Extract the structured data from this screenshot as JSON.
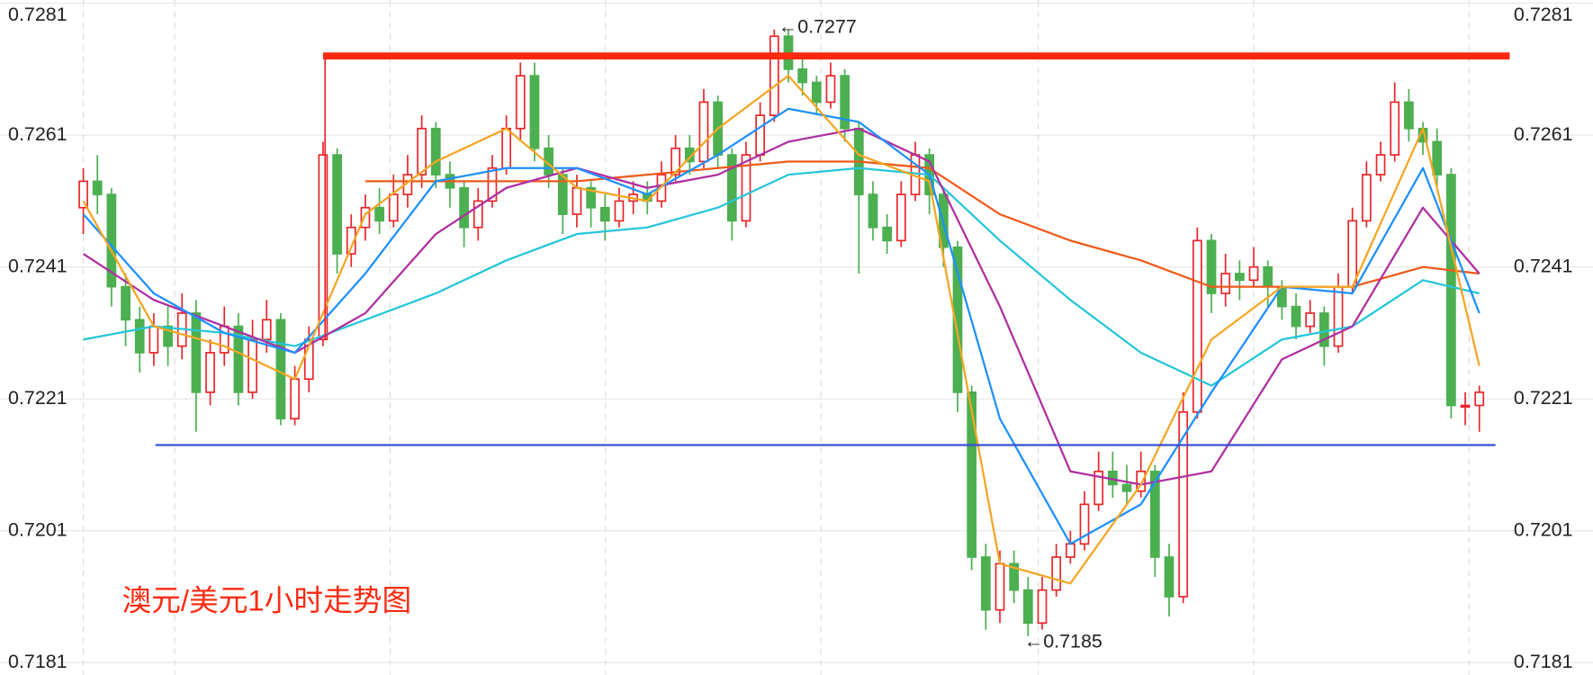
{
  "chart_data": {
    "type": "candlestick",
    "title": "澳元/美元1小时走势图",
    "ylim": [
      0.7181,
      0.7281
    ],
    "yticks": [
      0.7181,
      0.7201,
      0.7221,
      0.7241,
      0.7261,
      0.7281
    ],
    "grid": true,
    "up_color": "#e8262a",
    "down_color": "#4caf50",
    "ohlc": [
      [
        0.725,
        0.7256,
        0.7246,
        0.7254
      ],
      [
        0.7254,
        0.7258,
        0.7249,
        0.7252
      ],
      [
        0.7252,
        0.7253,
        0.7235,
        0.7238
      ],
      [
        0.7238,
        0.724,
        0.7229,
        0.7233
      ],
      [
        0.7233,
        0.7235,
        0.7225,
        0.7228
      ],
      [
        0.7228,
        0.7234,
        0.7226,
        0.7232
      ],
      [
        0.7232,
        0.7235,
        0.7226,
        0.7229
      ],
      [
        0.7229,
        0.7237,
        0.7227,
        0.7234
      ],
      [
        0.7234,
        0.7236,
        0.7216,
        0.7222
      ],
      [
        0.7222,
        0.723,
        0.722,
        0.7228
      ],
      [
        0.7228,
        0.7235,
        0.7226,
        0.7232
      ],
      [
        0.7232,
        0.7234,
        0.722,
        0.7222
      ],
      [
        0.7222,
        0.7233,
        0.7221,
        0.723
      ],
      [
        0.723,
        0.7236,
        0.7228,
        0.7233
      ],
      [
        0.7233,
        0.7234,
        0.7217,
        0.7218
      ],
      [
        0.7218,
        0.7226,
        0.7217,
        0.7224
      ],
      [
        0.7224,
        0.7232,
        0.7222,
        0.723
      ],
      [
        0.723,
        0.726,
        0.7229,
        0.7258
      ],
      [
        0.7258,
        0.7259,
        0.724,
        0.7243
      ],
      [
        0.7243,
        0.7249,
        0.7241,
        0.7247
      ],
      [
        0.7247,
        0.7252,
        0.7245,
        0.725
      ],
      [
        0.725,
        0.7253,
        0.7246,
        0.7248
      ],
      [
        0.7248,
        0.7255,
        0.7247,
        0.7252
      ],
      [
        0.7252,
        0.7258,
        0.725,
        0.7255
      ],
      [
        0.7255,
        0.7264,
        0.7253,
        0.7262
      ],
      [
        0.7262,
        0.7263,
        0.7253,
        0.7255
      ],
      [
        0.7255,
        0.7257,
        0.725,
        0.7253
      ],
      [
        0.7253,
        0.7254,
        0.7244,
        0.7247
      ],
      [
        0.7247,
        0.7253,
        0.7245,
        0.7251
      ],
      [
        0.7251,
        0.7258,
        0.725,
        0.7256
      ],
      [
        0.7256,
        0.7264,
        0.7255,
        0.7262
      ],
      [
        0.7262,
        0.7272,
        0.726,
        0.727
      ],
      [
        0.727,
        0.7272,
        0.7257,
        0.7259
      ],
      [
        0.7259,
        0.7261,
        0.7253,
        0.7255
      ],
      [
        0.7255,
        0.7256,
        0.7246,
        0.7249
      ],
      [
        0.7249,
        0.7255,
        0.7247,
        0.7253
      ],
      [
        0.7253,
        0.7254,
        0.7247,
        0.725
      ],
      [
        0.725,
        0.7252,
        0.7245,
        0.7248
      ],
      [
        0.7248,
        0.7253,
        0.7247,
        0.7251
      ],
      [
        0.7251,
        0.7254,
        0.7249,
        0.7252
      ],
      [
        0.7252,
        0.7254,
        0.7249,
        0.7251
      ],
      [
        0.7251,
        0.7257,
        0.725,
        0.7255
      ],
      [
        0.7255,
        0.7261,
        0.7254,
        0.7259
      ],
      [
        0.7259,
        0.7261,
        0.7255,
        0.7257
      ],
      [
        0.7257,
        0.7268,
        0.7256,
        0.7266
      ],
      [
        0.7266,
        0.7267,
        0.7256,
        0.7258
      ],
      [
        0.7258,
        0.7259,
        0.7245,
        0.7248
      ],
      [
        0.7248,
        0.726,
        0.7247,
        0.7258
      ],
      [
        0.7258,
        0.7266,
        0.7257,
        0.7264
      ],
      [
        0.7264,
        0.7277,
        0.7263,
        0.7276
      ],
      [
        0.7276,
        0.7277,
        0.7269,
        0.7271
      ],
      [
        0.7271,
        0.7273,
        0.7267,
        0.7269
      ],
      [
        0.7269,
        0.727,
        0.7264,
        0.7266
      ],
      [
        0.7266,
        0.7272,
        0.7265,
        0.727
      ],
      [
        0.727,
        0.7271,
        0.726,
        0.7262
      ],
      [
        0.7262,
        0.7263,
        0.724,
        0.7252
      ],
      [
        0.7252,
        0.7254,
        0.7245,
        0.7247
      ],
      [
        0.7247,
        0.7249,
        0.7243,
        0.7245
      ],
      [
        0.7245,
        0.7254,
        0.7244,
        0.7252
      ],
      [
        0.7252,
        0.726,
        0.7251,
        0.7258
      ],
      [
        0.7258,
        0.7259,
        0.7249,
        0.7252
      ],
      [
        0.7252,
        0.7253,
        0.7241,
        0.7244
      ],
      [
        0.7244,
        0.7245,
        0.7219,
        0.7222
      ],
      [
        0.7222,
        0.7223,
        0.7195,
        0.7197
      ],
      [
        0.7197,
        0.7199,
        0.7186,
        0.7189
      ],
      [
        0.7189,
        0.7198,
        0.7187,
        0.7196
      ],
      [
        0.7196,
        0.7198,
        0.719,
        0.7192
      ],
      [
        0.7192,
        0.7194,
        0.7185,
        0.7187
      ],
      [
        0.7187,
        0.7194,
        0.7186,
        0.7192
      ],
      [
        0.7192,
        0.7199,
        0.7191,
        0.7197
      ],
      [
        0.7197,
        0.7201,
        0.7196,
        0.7199
      ],
      [
        0.7199,
        0.7207,
        0.7198,
        0.7205
      ],
      [
        0.7205,
        0.7213,
        0.7204,
        0.721
      ],
      [
        0.721,
        0.7213,
        0.7206,
        0.7208
      ],
      [
        0.7208,
        0.7211,
        0.7205,
        0.7207
      ],
      [
        0.7207,
        0.7213,
        0.7206,
        0.721
      ],
      [
        0.721,
        0.7211,
        0.7194,
        0.7197
      ],
      [
        0.7197,
        0.7199,
        0.7188,
        0.7191
      ],
      [
        0.7191,
        0.7222,
        0.719,
        0.7219
      ],
      [
        0.7219,
        0.7247,
        0.7218,
        0.7245
      ],
      [
        0.7245,
        0.7246,
        0.7234,
        0.7237
      ],
      [
        0.7237,
        0.7243,
        0.7235,
        0.724
      ],
      [
        0.724,
        0.7242,
        0.7236,
        0.7239
      ],
      [
        0.7239,
        0.7244,
        0.7238,
        0.7241
      ],
      [
        0.7241,
        0.7242,
        0.7235,
        0.7238
      ],
      [
        0.7238,
        0.7239,
        0.7233,
        0.7235
      ],
      [
        0.7235,
        0.7237,
        0.723,
        0.7232
      ],
      [
        0.7232,
        0.7236,
        0.7231,
        0.7234
      ],
      [
        0.7234,
        0.7235,
        0.7226,
        0.7229
      ],
      [
        0.7229,
        0.724,
        0.7228,
        0.7238
      ],
      [
        0.7238,
        0.725,
        0.7237,
        0.7248
      ],
      [
        0.7248,
        0.7257,
        0.7247,
        0.7255
      ],
      [
        0.7255,
        0.726,
        0.7254,
        0.7258
      ],
      [
        0.7258,
        0.7269,
        0.7257,
        0.7266
      ],
      [
        0.7266,
        0.7268,
        0.726,
        0.7262
      ],
      [
        0.7262,
        0.7263,
        0.7258,
        0.726
      ],
      [
        0.726,
        0.7262,
        0.7253,
        0.7255
      ],
      [
        0.7255,
        0.7256,
        0.7218,
        0.722
      ],
      [
        0.722,
        0.7222,
        0.7217,
        0.722
      ],
      [
        0.722,
        0.7223,
        0.7216,
        0.7222
      ]
    ],
    "x": [
      0,
      5,
      10,
      15,
      20,
      25,
      30,
      35,
      40,
      45,
      50,
      55,
      60,
      65,
      70,
      75,
      80,
      85,
      90,
      95,
      99
    ],
    "series": [
      {
        "color": "#f05a1a",
        "values": [
          null,
          null,
          null,
          null,
          0.7254,
          0.7254,
          0.7254,
          0.7254,
          0.7255,
          0.7256,
          0.7257,
          0.7257,
          0.7256,
          0.7249,
          0.7245,
          0.7242,
          0.7238,
          0.7238,
          0.7238,
          0.7241,
          0.724
        ]
      },
      {
        "color": "#26c6da",
        "values": [
          0.723,
          0.7232,
          0.7231,
          0.7229,
          0.7233,
          0.7237,
          0.7242,
          0.7246,
          0.7247,
          0.725,
          0.7255,
          0.7256,
          0.7255,
          0.7245,
          0.7236,
          0.7228,
          0.7223,
          0.723,
          0.7232,
          0.7239,
          0.7237
        ]
      },
      {
        "color": "#b02fa0",
        "values": [
          0.7243,
          0.7236,
          0.7232,
          0.7228,
          0.7234,
          0.7246,
          0.7253,
          0.7256,
          0.7253,
          0.7255,
          0.726,
          0.7262,
          0.7257,
          0.7235,
          0.721,
          0.7208,
          0.721,
          0.7227,
          0.7232,
          0.725,
          0.724
        ]
      },
      {
        "color": "#1e90ff",
        "values": [
          0.7249,
          0.7237,
          0.7231,
          0.7228,
          0.724,
          0.7254,
          0.7256,
          0.7256,
          0.7252,
          0.7258,
          0.7265,
          0.7263,
          0.7255,
          0.7218,
          0.7199,
          0.7205,
          0.7222,
          0.7238,
          0.7237,
          0.7256,
          0.7234
        ]
      },
      {
        "color": "#f5a623",
        "values": [
          0.7251,
          0.7232,
          0.7229,
          0.7224,
          0.7249,
          0.7257,
          0.7262,
          0.7253,
          0.7251,
          0.7262,
          0.727,
          0.7258,
          0.7254,
          0.7196,
          0.7193,
          0.7208,
          0.723,
          0.7238,
          0.7238,
          0.7262,
          0.7226
        ]
      }
    ],
    "resistance": {
      "value": 0.7273,
      "color": "#ff2a10"
    },
    "support": {
      "value": 0.7214,
      "color": "#3a4fd6"
    },
    "annotations": [
      {
        "text": "←0.7277",
        "value": 0.7277
      },
      {
        "text": "←0.7185",
        "value": 0.7185
      }
    ]
  }
}
